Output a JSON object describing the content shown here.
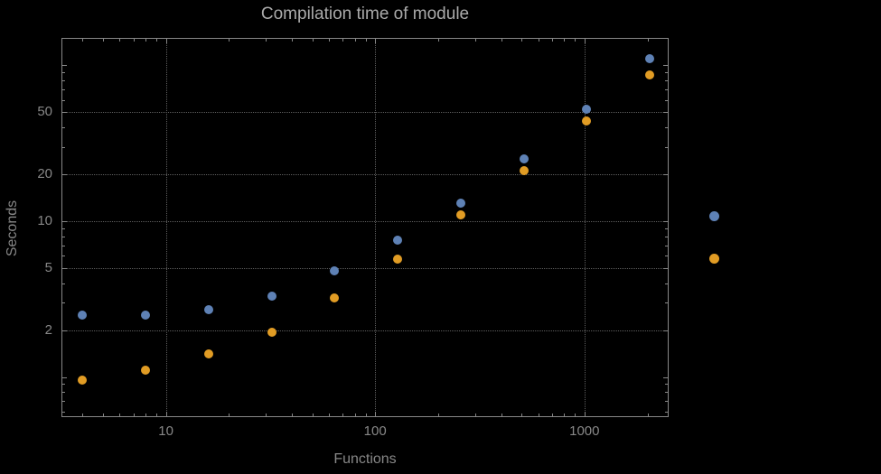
{
  "colors": {
    "background": "#000000",
    "frame": "#878787",
    "grid": "#5e5e5e",
    "text": "#878787",
    "title_text": "#aaaaaa",
    "series_blue": "#5e81b5",
    "series_orange": "#e19c24"
  },
  "chart_data": {
    "type": "scatter",
    "title": "Compilation time of module",
    "xlabel": "Functions",
    "ylabel": "Seconds",
    "x_scale": "log",
    "y_scale": "log",
    "xlim": [
      3.2,
      2500
    ],
    "ylim": [
      0.56,
      148
    ],
    "grid": true,
    "legend_position": "right",
    "x_ticks": [
      {
        "value": 10,
        "label": "10"
      },
      {
        "value": 100,
        "label": "100"
      },
      {
        "value": 1000,
        "label": "1000"
      }
    ],
    "y_ticks": [
      {
        "value": 2,
        "label": "2"
      },
      {
        "value": 5,
        "label": "5"
      },
      {
        "value": 10,
        "label": "10"
      },
      {
        "value": 20,
        "label": "20"
      },
      {
        "value": 50,
        "label": "50"
      }
    ],
    "x": [
      4,
      8,
      16,
      32,
      64,
      128,
      256,
      512,
      1024,
      2048
    ],
    "series": [
      {
        "name": "blue",
        "color": "#5e81b5",
        "values": [
          2.5,
          2.5,
          2.7,
          3.3,
          4.8,
          7.6,
          13,
          25,
          52,
          110
        ]
      },
      {
        "name": "orange",
        "color": "#e19c24",
        "values": [
          0.95,
          1.1,
          1.4,
          1.95,
          3.2,
          5.7,
          11,
          21,
          44,
          87
        ]
      }
    ]
  }
}
